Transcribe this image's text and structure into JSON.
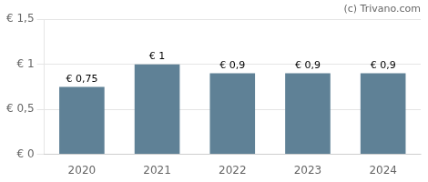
{
  "chart_data": {
    "type": "bar",
    "annotations": [
      "(c) Trivano.com"
    ],
    "categories": [
      "2020",
      "2021",
      "2022",
      "2023",
      "2024"
    ],
    "values": [
      0.75,
      1.0,
      0.9,
      0.9,
      0.9
    ],
    "value_labels": [
      "€ 0,75",
      "€ 1",
      "€ 0,9",
      "€ 0,9",
      "€ 0,9"
    ],
    "data_labels": true,
    "color": "#5f8196",
    "ylim": [
      0,
      1.5
    ],
    "yticks": [
      {
        "value": 0,
        "label": "€ 0"
      },
      {
        "value": 0.5,
        "label": "€ 0,5"
      },
      {
        "value": 1.0,
        "label": "€ 1"
      },
      {
        "value": 1.5,
        "label": "€ 1,5"
      }
    ],
    "grid": true
  }
}
